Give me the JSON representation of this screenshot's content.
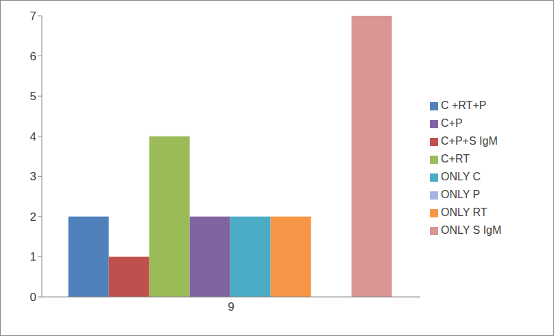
{
  "chart_data": {
    "type": "bar",
    "categories": [
      "9"
    ],
    "series": [
      {
        "name": "C +RT+P",
        "color": "#4f81bd",
        "values": [
          2
        ]
      },
      {
        "name": "C+P+S IgM",
        "color": "#c0504d",
        "values": [
          1
        ]
      },
      {
        "name": "C+RT",
        "color": "#9bbb59",
        "values": [
          4
        ]
      },
      {
        "name": "C+P",
        "color": "#8064a2",
        "values": [
          2
        ]
      },
      {
        "name": "ONLY  C",
        "color": "#4bacc6",
        "values": [
          2
        ]
      },
      {
        "name": "ONLY RT",
        "color": "#f79646",
        "values": [
          2
        ]
      },
      {
        "name": "ONLY P",
        "color": "#a5b5e3",
        "values": [
          0
        ]
      },
      {
        "name": "ONLY S IgM",
        "color": "#d99694",
        "values": [
          7
        ]
      }
    ],
    "ylim": [
      0,
      7
    ],
    "yticks": [
      0,
      1,
      2,
      3,
      4,
      5,
      6,
      7
    ],
    "grid": false,
    "legend": "right"
  }
}
